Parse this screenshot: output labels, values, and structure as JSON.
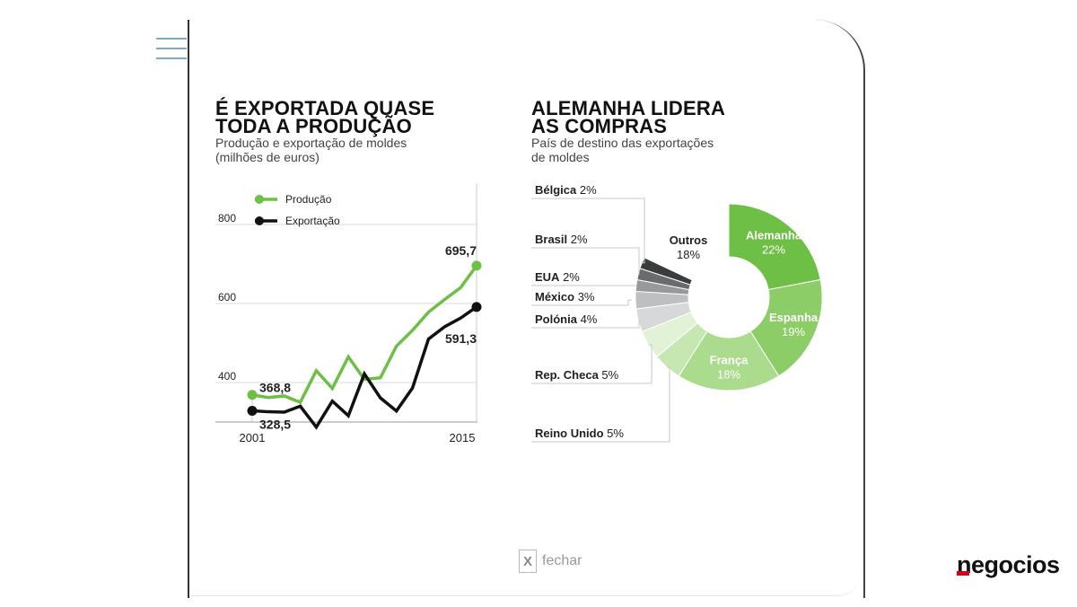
{
  "left_panel": {
    "title_line1": "É EXPORTADA QUASE",
    "title_line2": "TODA A PRODUÇÃO",
    "subtitle_line1": "Produção e exportação de moldes",
    "subtitle_line2": "(milhões de euros)"
  },
  "right_panel": {
    "title_line1": "ALEMANHA LIDERA",
    "title_line2": "AS COMPRAS",
    "subtitle_line1": "País de destino das exportações",
    "subtitle_line2": "de moldes"
  },
  "footer": {
    "close_icon": "X",
    "close_label": "fechar",
    "logo": "negocios"
  },
  "colors": {
    "producao": "#6dbf45",
    "exportacao": "#111111",
    "accent_logo": "#d6001c"
  },
  "chart_data": [
    {
      "type": "line",
      "ylim": [
        300,
        800
      ],
      "yticks": [
        400,
        600,
        800
      ],
      "ytick_labels": [
        "400",
        "600",
        "800"
      ],
      "x": [
        2001,
        2002,
        2003,
        2004,
        2005,
        2006,
        2007,
        2008,
        2009,
        2010,
        2011,
        2012,
        2013,
        2014,
        2015
      ],
      "xtick_labels": [
        "2001",
        "2015"
      ],
      "legend": [
        "Produção",
        "Exportação"
      ],
      "series": [
        {
          "name": "Produção",
          "values": [
            368.8,
            362,
            366,
            350,
            430,
            385,
            465,
            408,
            412,
            492,
            532,
            578,
            610,
            640,
            695.7
          ],
          "start_label": "368,8",
          "end_label": "695,7"
        },
        {
          "name": "Exportação",
          "values": [
            328.5,
            326,
            325,
            340,
            287,
            353,
            316,
            422,
            361,
            328,
            386,
            510,
            541,
            563,
            591.3
          ],
          "start_label": "328,5",
          "end_label": "591,3"
        }
      ]
    },
    {
      "type": "pie",
      "categories": [
        "Alemanha",
        "Espanha",
        "França",
        "Reino Unido",
        "Rep. Checa",
        "Polónia",
        "México",
        "EUA",
        "Brasil",
        "Bélgica",
        "Outros"
      ],
      "values": [
        22,
        19,
        18,
        5,
        5,
        4,
        3,
        2,
        2,
        2,
        18
      ],
      "value_labels": [
        "22%",
        "19%",
        "18%",
        "5%",
        "5%",
        "4%",
        "3%",
        "2%",
        "2%",
        "2%",
        "18%"
      ],
      "colors": [
        "#6dbf45",
        "#8ccd68",
        "#abdb8d",
        "#c6e7b1",
        "#e2f2d6",
        "#d7d8d9",
        "#bebfc0",
        "#98999b",
        "#6a6b6d",
        "#3b3c3d",
        "#ffffff"
      ]
    }
  ]
}
